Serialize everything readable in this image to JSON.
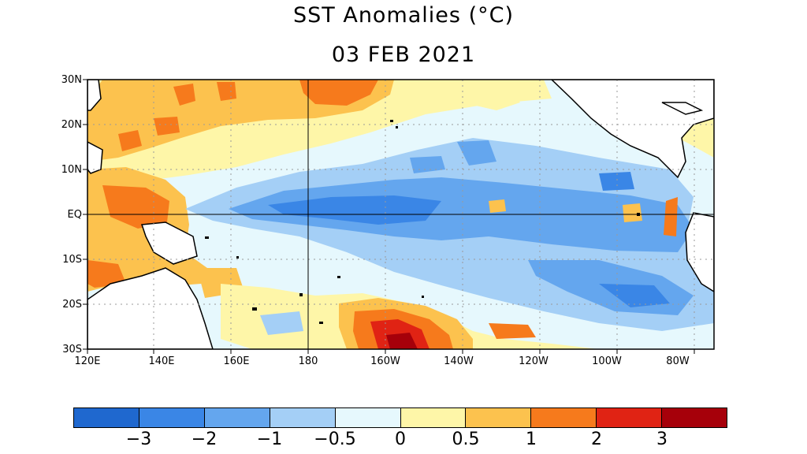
{
  "title": "SST Anomalies (°C)",
  "date": "03 FEB 2021",
  "map": {
    "lat_labels": [
      "30N",
      "20N",
      "10N",
      "EQ",
      "10S",
      "20S",
      "30S"
    ],
    "lon_labels": [
      "120E",
      "140E",
      "160E",
      "180",
      "160W",
      "140W",
      "120W",
      "100W",
      "80W"
    ],
    "lon_range": [
      "120E",
      "70W"
    ],
    "lat_range": [
      "30S",
      "30N"
    ],
    "grid": "dotted",
    "highlighted_lines": [
      "EQ",
      "180"
    ]
  },
  "colorbar": {
    "labels": [
      "−3",
      "−2",
      "−1",
      "−0.5",
      "0",
      "0.5",
      "1",
      "2",
      "3"
    ],
    "colors": [
      "#1f68cf",
      "#3a86e6",
      "#64a6ee",
      "#a4cff6",
      "#e6f8fd",
      "#fef6a8",
      "#fcc24e",
      "#f67a1c",
      "#e02314",
      "#a6000a"
    ]
  }
}
